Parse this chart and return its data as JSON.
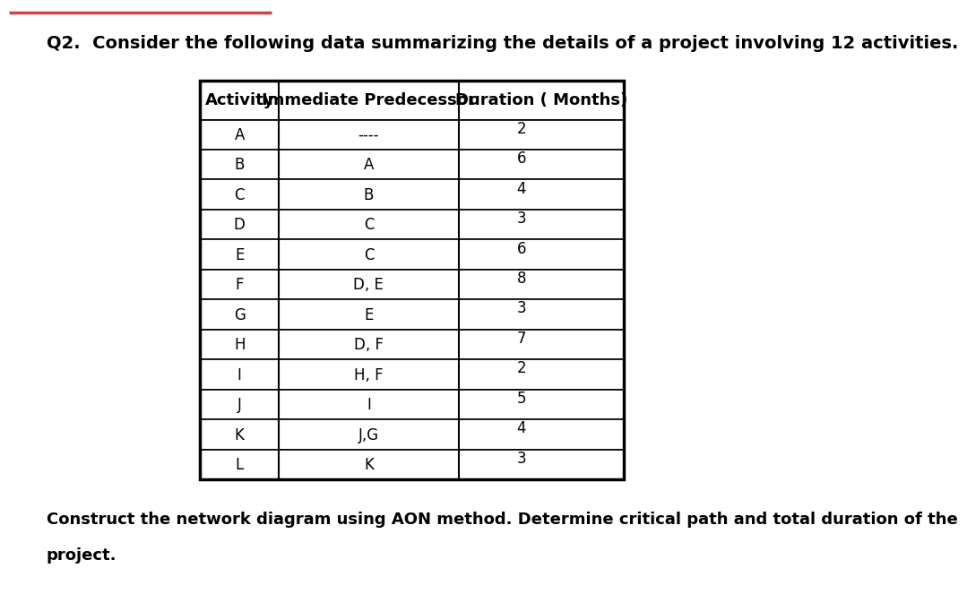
{
  "title": "Q2.  Consider the following data summarizing the details of a project involving 12 activities.",
  "header": [
    "Activity",
    "Immediate Predecessor",
    "Duration ( Months)"
  ],
  "rows": [
    [
      "A",
      "----",
      "2"
    ],
    [
      "B",
      "A",
      "6"
    ],
    [
      "C",
      "B",
      "4"
    ],
    [
      "D",
      "C",
      "3"
    ],
    [
      "E",
      "C",
      "6"
    ],
    [
      "F",
      "D, E",
      "8"
    ],
    [
      "G",
      "E",
      "3"
    ],
    [
      "H",
      "D, F",
      "7"
    ],
    [
      "I",
      "H, F",
      "2"
    ],
    [
      "J",
      "I",
      "5"
    ],
    [
      "K",
      "J,G",
      "4"
    ],
    [
      "L",
      "K",
      "3"
    ]
  ],
  "footer_line1": "Construct the network diagram using AON method. Determine critical path and total duration of the",
  "footer_line2": "project.",
  "background_color": "#ffffff",
  "table_bg": "#ffffff",
  "header_bg": "#ffffff",
  "border_color": "#000000",
  "text_color": "#000000",
  "title_fontsize": 14,
  "header_fontsize": 13,
  "cell_fontsize": 12,
  "footer_fontsize": 13,
  "top_line_color": "#cc4444",
  "col_proportions": [
    0.185,
    0.425,
    0.39
  ]
}
